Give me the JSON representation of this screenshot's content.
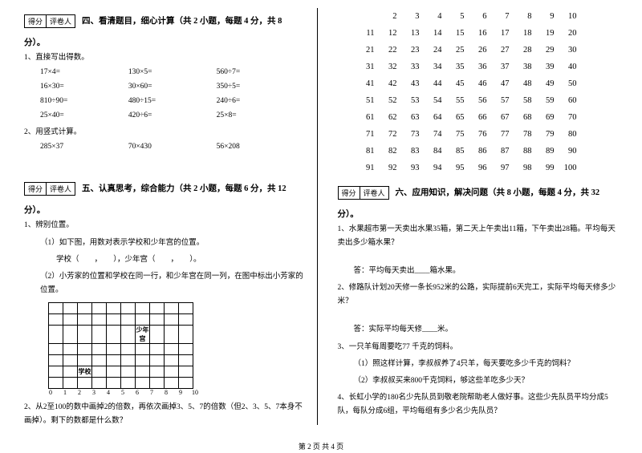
{
  "scoreBox": {
    "col1": "得分",
    "col2": "评卷人"
  },
  "section4": {
    "title": "四、看清题目，细心计算（共 2 小题，每题 4 分，共 8",
    "tail": "分）。",
    "q1": "1、直接写出得数。",
    "calc": [
      [
        "17×4=",
        "130×5=",
        "560÷7="
      ],
      [
        "16×30=",
        "30×60=",
        "350÷5="
      ],
      [
        "810÷90=",
        "480÷15=",
        "240÷6="
      ],
      [
        "25×40=",
        "420÷6=",
        "25×8="
      ]
    ],
    "q2": "2、用竖式计算。",
    "calc2": [
      "285×37",
      "70×430",
      "56×208"
    ]
  },
  "section5": {
    "title": "五、认真思考，综合能力（共 2 小题，每题 6 分，共 12",
    "tail": "分）。",
    "q1": "1、辨别位置。",
    "q1a": "（1）如下图，用数对表示学校和少年宫的位置。",
    "q1a_line": "学校（　　，　　），少年宫（　　，　　）。",
    "q1b": "（2）小芳家的位置和学校在同一行，和少年宫在同一列，在图中标出小芳家的位置。",
    "chart": {
      "rows": 7,
      "cols": 10,
      "school_label": "学校",
      "palace_label": "少年宫",
      "x_axis": [
        "0",
        "1",
        "2",
        "3",
        "4",
        "5",
        "6",
        "7",
        "8",
        "9",
        "10"
      ]
    },
    "q2": "2、从2至100的数中画掉2的倍数，再依次画掉3、5、7的倍数（但2、3、5、7本身不画掉）。剩下的数都是什么数？"
  },
  "numberGrid": {
    "start": 2,
    "end": 100,
    "perRow": 10
  },
  "section6": {
    "title": "六、应用知识，解决问题（共 8 小题，每题 4 分，共 32",
    "tail": "分）。",
    "q1": "1、水果超市第一天卖出水果35箱，第二天上午卖出11箱，下午卖出28箱。平均每天卖出多少箱水果？",
    "q1a": "答：平均每天卖出____箱水果。",
    "q2": "2、修路队计划20天修一条长952米的公路，实际提前6天完工，实际平均每天修多少米？",
    "q2a": "答：实际平均每天修____米。",
    "q3": "3、一只羊每周要吃77 千克的饲料。",
    "q3a": "（1）照这样计算，李叔叔养了4只羊，每天要吃多少千克的饲料？",
    "q3b": "（2）李叔叔买来800千克饲料，够这些羊吃多少天？",
    "q4": "4、长虹小学的180名少先队员到敬老院帮助老人做好事。这些少先队员平均分成5队，每队分成6组，平均每组有多少名少先队员？"
  },
  "footer": "第 2 页 共 4 页"
}
